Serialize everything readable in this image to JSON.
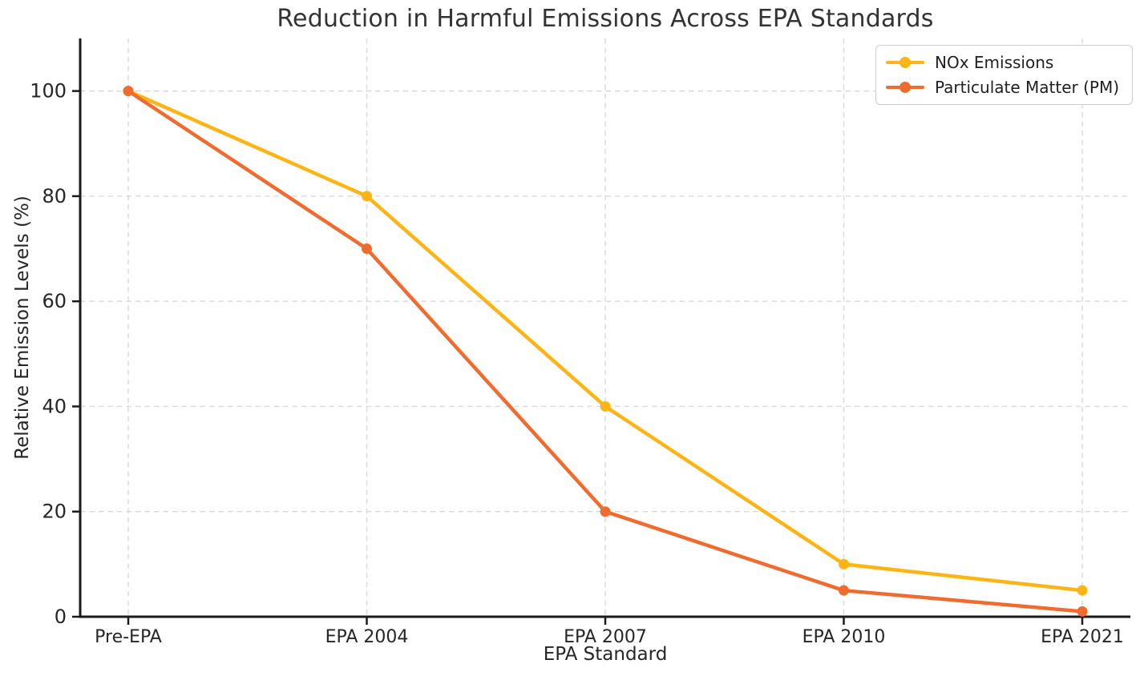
{
  "chart_data": {
    "type": "line",
    "title": "Reduction in Harmful Emissions Across EPA Standards",
    "xlabel": "EPA Standard",
    "ylabel": "Relative Emission Levels (%)",
    "categories": [
      "Pre-EPA",
      "EPA 2004",
      "EPA 2007",
      "EPA 2010",
      "EPA 2021"
    ],
    "series": [
      {
        "name": "NOx Emissions",
        "color": "#FDB414",
        "values": [
          100,
          80,
          40,
          10,
          5
        ]
      },
      {
        "name": "Particulate Matter (PM)",
        "color": "#F06C2E",
        "values": [
          100,
          70,
          20,
          5,
          1
        ]
      }
    ],
    "ylim": [
      0,
      110
    ],
    "yticks": [
      0,
      20,
      40,
      60,
      80,
      100
    ],
    "grid": {
      "visible": true,
      "style": "dashed",
      "color": "#d9d9d9"
    },
    "legend": {
      "position": "upper right",
      "items": [
        "NOx Emissions",
        "Particulate Matter (PM)"
      ]
    },
    "marker": "circle",
    "axis_color": "#1a1a1a",
    "text_color": "#262626",
    "background": "#ffffff"
  }
}
